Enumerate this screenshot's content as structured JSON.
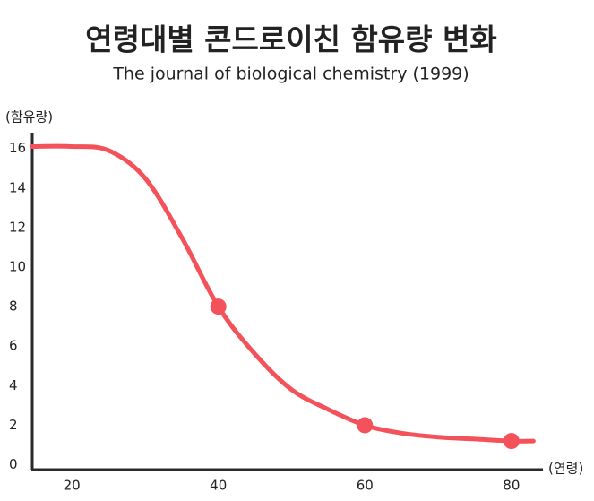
{
  "chart_data": {
    "type": "line",
    "title": "연령대별 콘드로이친 함유량 변화",
    "subtitle": "The journal of biological chemistry (1999)",
    "y_label": "(함유량)",
    "x_label": "(연령)",
    "series": [
      {
        "color": "#f4525a",
        "smooth": true,
        "line": true,
        "markers": false,
        "x": [
          14.6,
          20,
          25,
          30,
          35,
          40,
          45,
          50,
          55,
          60,
          65,
          70,
          75,
          80,
          83
        ],
        "values": [
          16.1,
          16.1,
          15.9,
          14.5,
          11.5,
          8,
          5.6,
          3.8,
          2.8,
          2,
          1.6,
          1.4,
          1.3,
          1.2,
          1.2
        ]
      },
      {
        "color": "#f4525a",
        "line": false,
        "markers": true,
        "x": [
          40,
          60,
          80
        ],
        "values": [
          8,
          2,
          1.2
        ]
      }
    ],
    "xlim": [
      14.6,
      84.3
    ],
    "xticks": [
      20,
      40,
      60,
      80
    ],
    "ylim": [
      -0.2,
      16.8
    ],
    "yticks": [
      0,
      2,
      4,
      6,
      8,
      10,
      12,
      14,
      16
    ],
    "grid": false
  }
}
